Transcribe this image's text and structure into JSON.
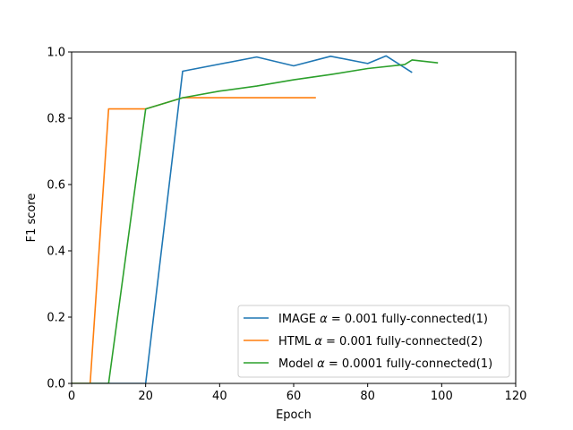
{
  "chart_data": {
    "type": "line",
    "title": "",
    "xlabel": "Epoch",
    "ylabel": "F1 score",
    "xlim": [
      0,
      120
    ],
    "ylim": [
      0,
      1.0
    ],
    "xticks": [
      0,
      20,
      40,
      60,
      80,
      100,
      120
    ],
    "yticks": [
      0.0,
      0.2,
      0.4,
      0.6,
      0.8,
      1.0
    ],
    "xtick_labels": [
      "0",
      "20",
      "40",
      "60",
      "80",
      "100",
      "120"
    ],
    "ytick_labels": [
      "0.0",
      "0.2",
      "0.4",
      "0.6",
      "0.8",
      "1.0"
    ],
    "grid": false,
    "legend_position": "lower-right",
    "series": [
      {
        "legend_parts": [
          "IMAGE ",
          "α",
          " = 0.001 fully-connected(1)"
        ],
        "color": "#1f77b4",
        "x": [
          0,
          20,
          30,
          50,
          60,
          70,
          80,
          85,
          92
        ],
        "y": [
          0.0,
          0.0,
          0.942,
          0.985,
          0.958,
          0.987,
          0.965,
          0.988,
          0.938
        ]
      },
      {
        "legend_parts": [
          "HTML ",
          "α",
          " = 0.001 fully-connected(2)"
        ],
        "color": "#ff7f0e",
        "x": [
          0,
          5,
          10,
          20,
          30,
          66
        ],
        "y": [
          0.0,
          0.0,
          0.828,
          0.828,
          0.862,
          0.862
        ]
      },
      {
        "legend_parts": [
          "Model ",
          "α",
          " = 0.0001 fully-connected(1)"
        ],
        "color": "#2ca02c",
        "x": [
          0,
          10,
          20,
          30,
          40,
          50,
          60,
          70,
          80,
          90,
          92,
          99
        ],
        "y": [
          0.0,
          0.0,
          0.828,
          0.862,
          0.882,
          0.897,
          0.916,
          0.932,
          0.95,
          0.962,
          0.976,
          0.967
        ]
      }
    ]
  }
}
